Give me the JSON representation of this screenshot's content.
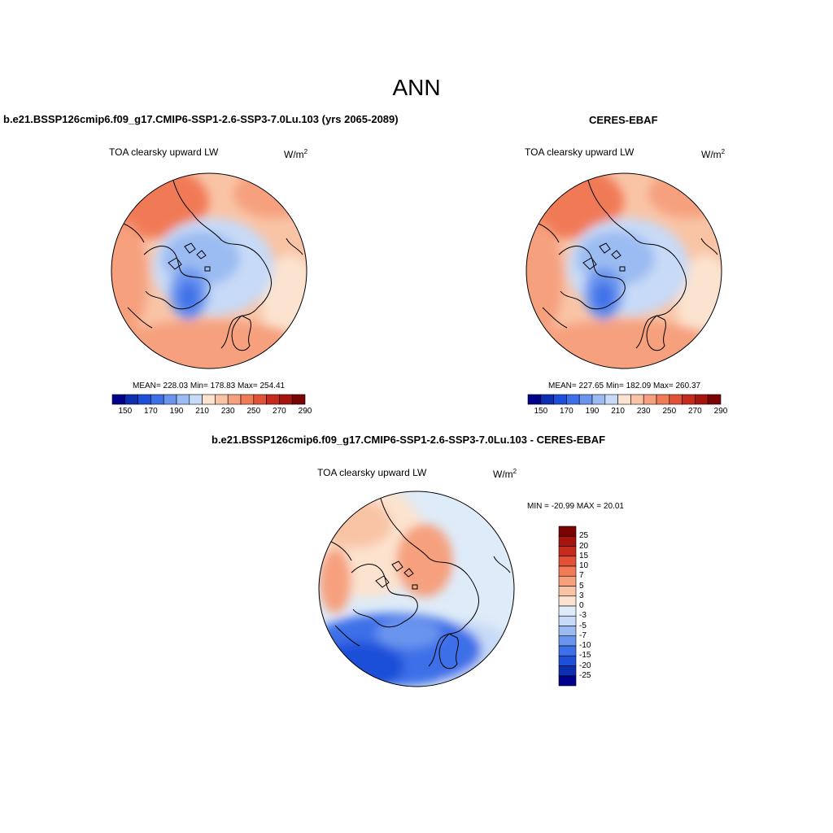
{
  "main_title": "ANN",
  "panels": [
    {
      "case_title": "b.e21.BSSP126cmip6.f09_g17.CMIP6-SSP1-2.6-SSP3-7.0Lu.103 (yrs 2065-2089)",
      "var_label": "TOA clearsky upward LW",
      "units_base": "W/m",
      "units_sup": "2",
      "stats": "MEAN= 228.03  Min= 178.83  Max= 254.41"
    },
    {
      "case_title": "CERES-EBAF",
      "var_label": "TOA clearsky upward LW",
      "units_base": "W/m",
      "units_sup": "2",
      "stats": "MEAN= 227.65  Min= 182.09  Max= 260.37"
    },
    {
      "case_title": "b.e21.BSSP126cmip6.f09_g17.CMIP6-SSP1-2.6-SSP3-7.0Lu.103 - CERES-EBAF",
      "var_label": "TOA clearsky upward LW",
      "units_base": "W/m",
      "units_sup": "2",
      "stats": "MIN = -20.99 MAX =  20.01"
    }
  ],
  "colorbar_main": {
    "labels": [
      "150",
      "170",
      "190",
      "210",
      "230",
      "250",
      "270",
      "290"
    ],
    "colors": [
      "#00008b",
      "#0b2fae",
      "#1e4fd8",
      "#3d6fe8",
      "#6a95ee",
      "#9bbcf2",
      "#c7daf7",
      "#fbe3cf",
      "#f9c4a6",
      "#f6a07e",
      "#f17a57",
      "#e25236",
      "#c52b1c",
      "#a6150d",
      "#7a0303"
    ]
  },
  "colorbar_diff": {
    "labels": [
      "25",
      "20",
      "15",
      "10",
      "7",
      "5",
      "3",
      "0",
      "-3",
      "-5",
      "-7",
      "-10",
      "-15",
      "-20",
      "-25"
    ],
    "colors": [
      "#7a0303",
      "#a6150d",
      "#c52b1c",
      "#e25236",
      "#f17a57",
      "#f6a07e",
      "#f9c4a6",
      "#fbe3cf",
      "#deebf8",
      "#c7daf7",
      "#9bbcf2",
      "#6a95ee",
      "#3d6fe8",
      "#1e4fd8",
      "#0b2fae",
      "#00008b"
    ]
  }
}
